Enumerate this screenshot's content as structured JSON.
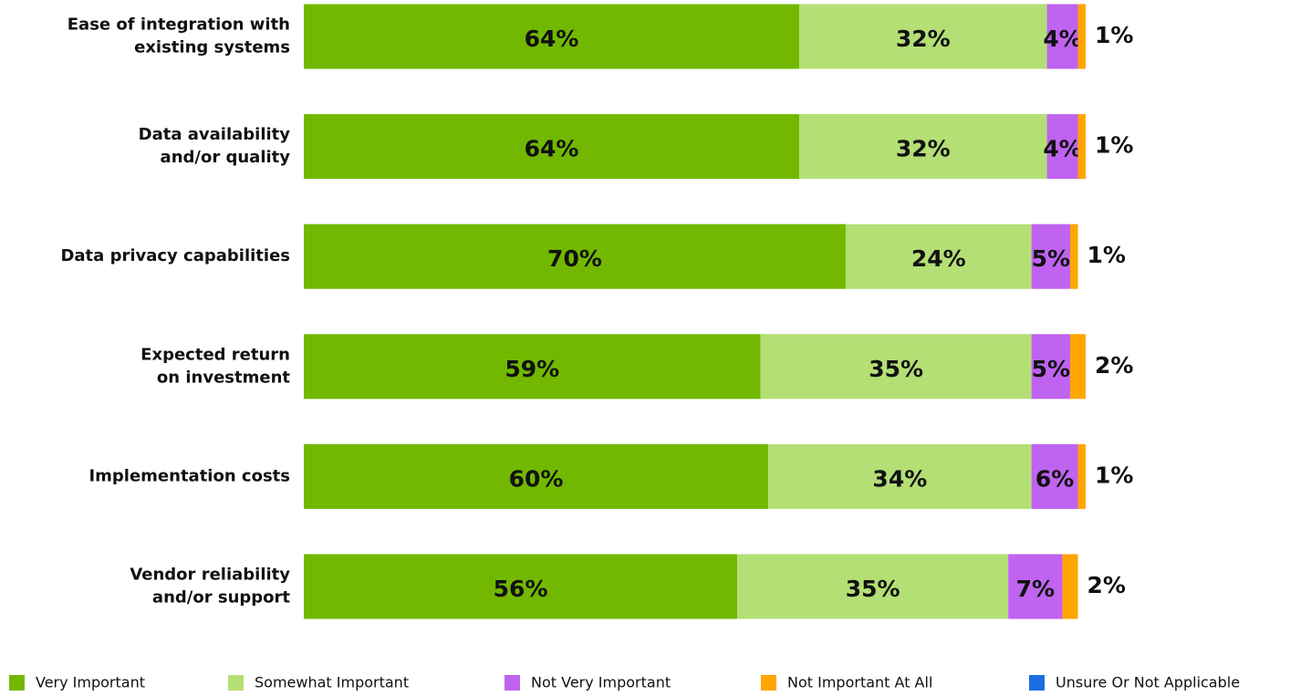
{
  "chart_data": {
    "type": "stacked_barh",
    "categories": [
      "Ease of integration with\nexisting systems",
      "Data availability\nand/or quality",
      "Data privacy capabilities",
      "Expected return\non investment",
      "Implementation costs",
      "Vendor reliability\nand/or support"
    ],
    "xlim": [
      0,
      101
    ],
    "series": [
      {
        "name": "Very Important",
        "color": "#72b800",
        "values": [
          64,
          64,
          70,
          59,
          60,
          56
        ],
        "value_labels": [
          "64%",
          "64%",
          "70%",
          "59%",
          "60%",
          "56%"
        ]
      },
      {
        "name": "Somewhat Important",
        "color": "#b4df75",
        "values": [
          32,
          32,
          24,
          35,
          34,
          35
        ],
        "value_labels": [
          "32%",
          "32%",
          "24%",
          "35%",
          "34%",
          "35%"
        ]
      },
      {
        "name": "Not Very Important",
        "color": "#bf63f0",
        "values": [
          4,
          4,
          5,
          5,
          6,
          7
        ],
        "value_labels": [
          "4%",
          "4%",
          "5%",
          "5%",
          "6%",
          "7%"
        ]
      },
      {
        "name": "Not Important At All",
        "color": "#ffa500",
        "values": [
          1,
          1,
          1,
          2,
          1,
          2
        ],
        "value_labels": [
          "1%",
          "1%",
          "1%",
          "2%",
          "1%",
          "2%"
        ]
      },
      {
        "name": "Unsure Or Not Applicable",
        "color": "#1a6ee0",
        "values": [
          0,
          0,
          0,
          0,
          0,
          0
        ]
      }
    ]
  }
}
